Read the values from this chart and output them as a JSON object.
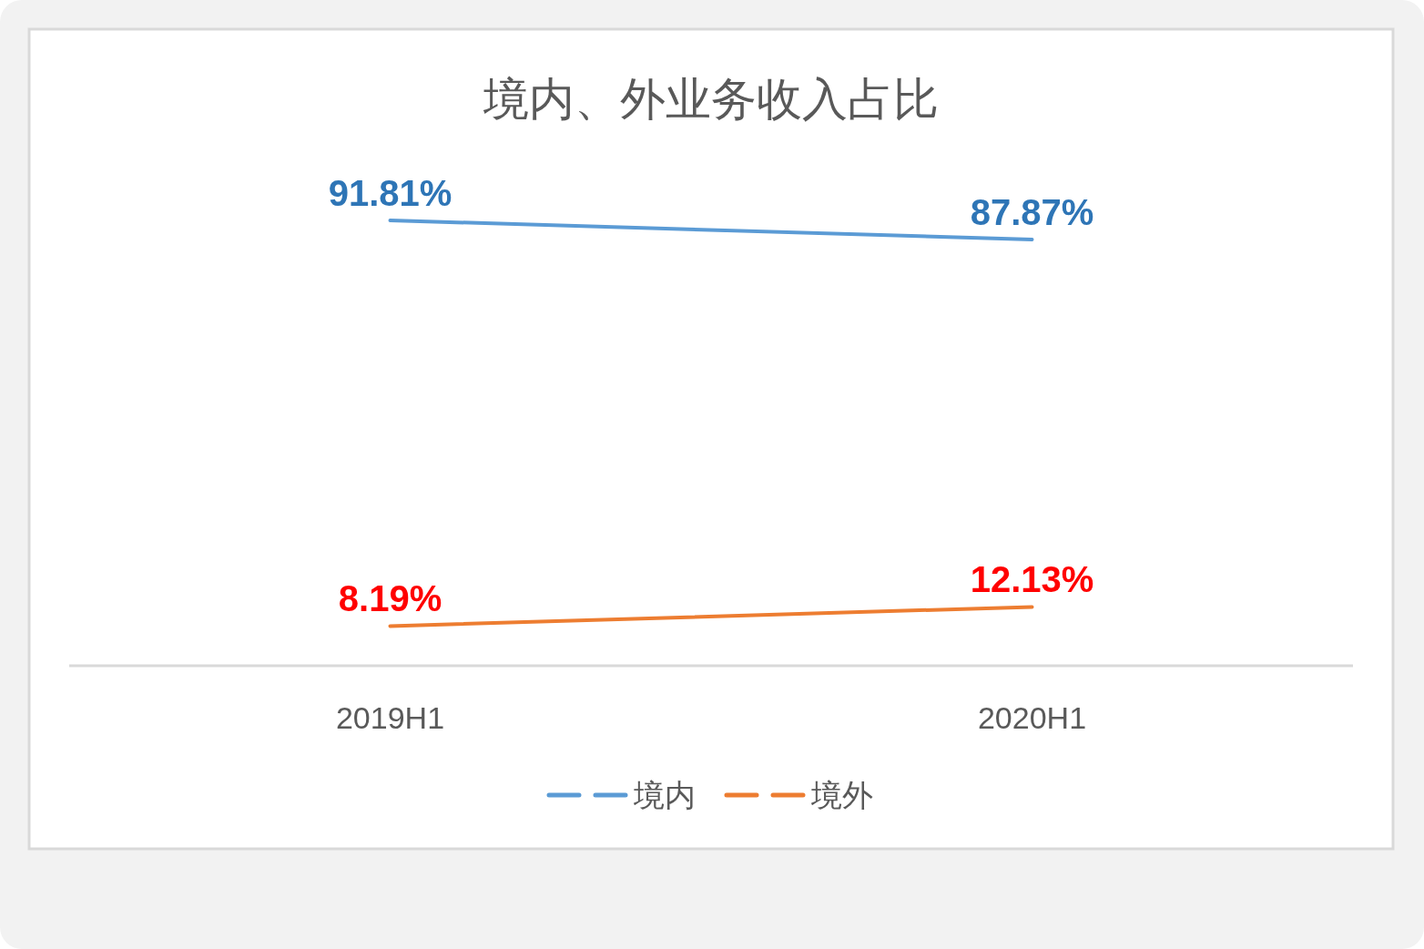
{
  "chart_data": {
    "type": "line",
    "title": "境内、外业务收入占比",
    "categories": [
      "2019H1",
      "2020H1"
    ],
    "series": [
      {
        "name": "境内",
        "color": "#5b9bd5",
        "values": [
          91.81,
          87.87
        ],
        "value_labels": [
          "91.81%",
          "87.87%"
        ]
      },
      {
        "name": "境外",
        "color": "#ed7d31",
        "values": [
          8.19,
          12.13
        ],
        "value_labels": [
          "8.19%",
          "12.13%"
        ]
      }
    ],
    "legend": "bottom"
  }
}
